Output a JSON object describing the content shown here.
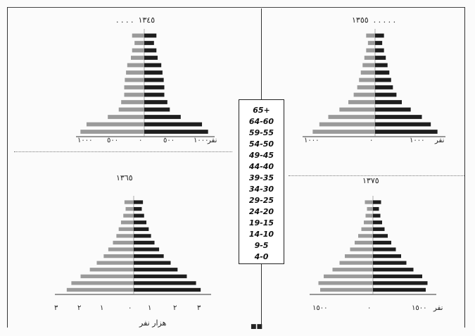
{
  "legend": {
    "age_groups": [
      "65+",
      "64-60",
      "59-55",
      "54-50",
      "49-45",
      "44-40",
      "39-35",
      "34-30",
      "29-25",
      "24-20",
      "19-15",
      "14-10",
      "9-5",
      "4-0"
    ]
  },
  "panels": {
    "top_left": {
      "title": "١٣٤٥",
      "ticks": [
        "١٠٠٠",
        "٥٠٠",
        "٠",
        "٥٠٠",
        "١٠٠٠",
        "نفر"
      ]
    },
    "top_right": {
      "title": "١٣٥٥",
      "ticks": [
        "١٠٠٠",
        "٠",
        "١٠٠٠",
        "نفر"
      ]
    },
    "bottom_left": {
      "title": "١٣٦٥",
      "ticks": [
        "٣",
        "٢",
        "١",
        "٠",
        "١",
        "٢",
        "٣"
      ],
      "xlabel": "هزار نفر"
    },
    "bottom_right": {
      "title": "١٣٧٥",
      "ticks": [
        "١٥٠٠",
        "٠",
        "١٥٠٠",
        "نفر"
      ]
    }
  },
  "chart_data": [
    {
      "type": "bar",
      "title": "١٣٤٥",
      "orientation": "horizontal",
      "categories": [
        "4-0",
        "9-5",
        "14-10",
        "19-15",
        "24-20",
        "29-25",
        "34-30",
        "39-35",
        "44-40",
        "49-45",
        "54-50",
        "59-55",
        "64-60",
        "65+"
      ],
      "series": [
        {
          "values": [
            -1050,
            -950,
            -600,
            -420,
            -380,
            -330,
            -330,
            -320,
            -300,
            -280,
            -220,
            -200,
            -160,
            -200
          ]
        },
        {
          "values": [
            1050,
            950,
            600,
            420,
            380,
            330,
            330,
            320,
            300,
            280,
            220,
            200,
            160,
            200
          ]
        }
      ],
      "xlim": [
        -1100,
        1100
      ],
      "ticks": [
        "١٠٠٠",
        "٥٠٠",
        "٠",
        "٥٠٠",
        "١٠٠٠"
      ]
    },
    {
      "type": "bar",
      "title": "١٣٥٥",
      "orientation": "horizontal",
      "categories": [
        "4-0",
        "9-5",
        "14-10",
        "19-15",
        "24-20",
        "29-25",
        "34-30",
        "39-35",
        "44-40",
        "49-45",
        "54-50",
        "59-55",
        "64-60",
        "65+"
      ],
      "series": [
        {
          "values": [
            -1400,
            -1250,
            -1050,
            -800,
            -600,
            -480,
            -400,
            -360,
            -320,
            -280,
            -240,
            -200,
            -160,
            -200
          ]
        },
        {
          "values": [
            1400,
            1250,
            1050,
            800,
            600,
            480,
            400,
            360,
            320,
            280,
            240,
            200,
            160,
            200
          ]
        }
      ],
      "xlim": [
        -1500,
        1500
      ],
      "ticks": [
        "١٠٠٠",
        "٠",
        "١٠٠٠"
      ]
    },
    {
      "type": "bar",
      "title": "١٣٦٥",
      "orientation": "horizontal",
      "categories": [
        "4-0",
        "9-5",
        "14-10",
        "19-15",
        "24-20",
        "29-25",
        "34-30",
        "39-35",
        "44-40",
        "49-45",
        "54-50",
        "59-55",
        "64-60",
        "65+"
      ],
      "series": [
        {
          "values": [
            -2.9,
            -2.7,
            -2.3,
            -1.9,
            -1.6,
            -1.3,
            -1.1,
            -0.9,
            -0.75,
            -0.65,
            -0.55,
            -0.45,
            -0.35,
            -0.4
          ]
        },
        {
          "values": [
            2.9,
            2.7,
            2.3,
            1.9,
            1.6,
            1.3,
            1.1,
            0.9,
            0.75,
            0.65,
            0.55,
            0.45,
            0.35,
            0.4
          ]
        }
      ],
      "xlim": [
        -3.2,
        3.2
      ],
      "xlabel": "هزار نفر",
      "ticks": [
        "٣",
        "٢",
        "١",
        "٠",
        "١",
        "٢",
        "٣"
      ]
    },
    {
      "type": "bar",
      "title": "١٣٧٥",
      "orientation": "horizontal",
      "categories": [
        "4-0",
        "9-5",
        "14-10",
        "19-15",
        "24-20",
        "29-25",
        "34-30",
        "39-35",
        "44-40",
        "49-45",
        "54-50",
        "59-55",
        "64-60",
        "65+"
      ],
      "series": [
        {
          "values": [
            -1500,
            -1550,
            -1400,
            -1150,
            -950,
            -800,
            -650,
            -520,
            -420,
            -330,
            -260,
            -210,
            -170,
            -230
          ]
        },
        {
          "values": [
            1500,
            1550,
            1400,
            1150,
            950,
            800,
            650,
            520,
            420,
            330,
            260,
            210,
            170,
            230
          ]
        }
      ],
      "xlim": [
        -1700,
        1700
      ],
      "ticks": [
        "١٥٠٠",
        "٠",
        "١٥٠٠"
      ]
    }
  ],
  "footer": {
    "page_marker": "■■"
  }
}
